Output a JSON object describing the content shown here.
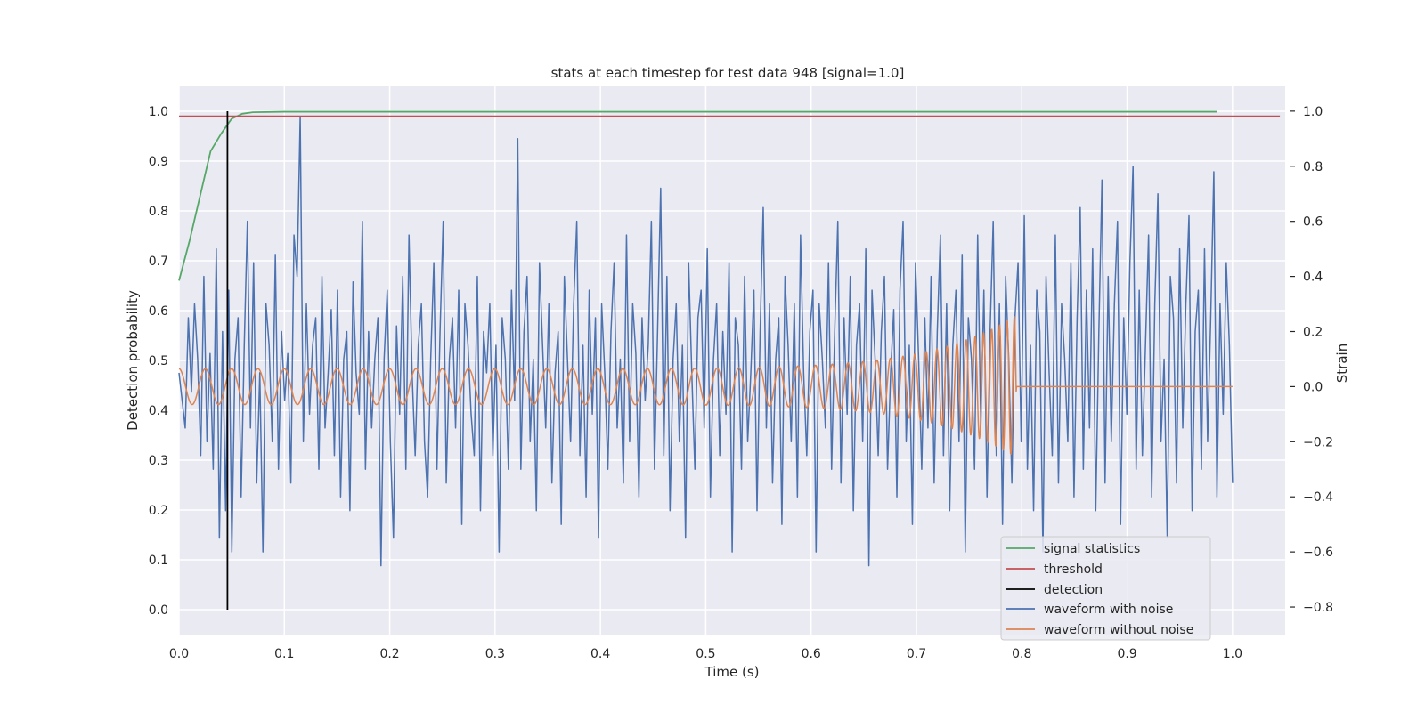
{
  "chart_data": {
    "type": "line",
    "title": "stats at each timestep for test data 948 [signal=1.0]",
    "xlabel": "Time (s)",
    "ylabel_left": "Detection probability",
    "ylabel_right": "Strain",
    "xlim": [
      0.0,
      1.05
    ],
    "ylim_left": [
      -0.05,
      1.05
    ],
    "ylim_right": [
      -0.9,
      1.09
    ],
    "x_ticks": [
      0.0,
      0.1,
      0.2,
      0.3,
      0.4,
      0.5,
      0.6,
      0.7,
      0.8,
      0.9,
      1.0
    ],
    "x_tick_labels": [
      "0.0",
      "0.1",
      "0.2",
      "0.3",
      "0.4",
      "0.5",
      "0.6",
      "0.7",
      "0.8",
      "0.9",
      "1.0"
    ],
    "y_left_ticks": [
      0.0,
      0.1,
      0.2,
      0.3,
      0.4,
      0.5,
      0.6,
      0.7,
      0.8,
      0.9,
      1.0
    ],
    "y_left_tick_labels": [
      "0.0",
      "0.1",
      "0.2",
      "0.3",
      "0.4",
      "0.5",
      "0.6",
      "0.7",
      "0.8",
      "0.9",
      "1.0"
    ],
    "y_right_ticks": [
      -0.8,
      -0.6,
      -0.4,
      -0.2,
      0.0,
      0.2,
      0.4,
      0.6,
      0.8,
      1.0
    ],
    "y_right_tick_labels": [
      "−0.8",
      "−0.6",
      "−0.4",
      "−0.2",
      "0.0",
      "0.2",
      "0.4",
      "0.6",
      "0.8",
      "1.0"
    ],
    "grid": true,
    "legend_position": "bottom-right",
    "background_color": "#eaeaf2",
    "series": [
      {
        "name": "signal statistics",
        "axis": "left",
        "color": "#55a868",
        "x": [
          0.0,
          0.01,
          0.02,
          0.03,
          0.04,
          0.05,
          0.06,
          0.07,
          0.1,
          0.3,
          0.5,
          0.7,
          0.9,
          0.985
        ],
        "y": [
          0.66,
          0.74,
          0.83,
          0.92,
          0.955,
          0.985,
          0.995,
          0.998,
          0.999,
          0.999,
          0.999,
          0.999,
          0.999,
          0.999
        ]
      },
      {
        "name": "threshold",
        "axis": "left",
        "color": "#c44e52",
        "x": [
          0.0,
          1.045
        ],
        "y": [
          0.99,
          0.99
        ]
      },
      {
        "name": "detection",
        "axis": "left",
        "color": "#000000",
        "x": [
          0.046,
          0.046
        ],
        "y": [
          0.0,
          1.0
        ]
      },
      {
        "name": "waveform with noise",
        "axis": "right",
        "color": "#4c72b0",
        "x_start": 0.0,
        "x_end": 1.0,
        "y": [
          0.05,
          -0.05,
          -0.15,
          0.25,
          -0.02,
          0.3,
          0.1,
          -0.25,
          0.4,
          -0.2,
          0.12,
          -0.3,
          0.5,
          -0.55,
          0.2,
          -0.45,
          0.35,
          -0.6,
          0.1,
          0.25,
          -0.4,
          0.15,
          0.6,
          -0.15,
          0.45,
          -0.35,
          0.05,
          -0.6,
          0.3,
          0.15,
          -0.2,
          0.48,
          -0.3,
          0.2,
          -0.05,
          0.12,
          -0.35,
          0.55,
          0.4,
          0.98,
          -0.2,
          0.3,
          -0.1,
          0.15,
          0.25,
          -0.3,
          0.4,
          -0.15,
          0.05,
          0.28,
          -0.25,
          0.35,
          -0.4,
          0.1,
          0.2,
          -0.45,
          0.38,
          0.05,
          -0.1,
          0.6,
          -0.3,
          0.2,
          -0.15,
          0.1,
          0.25,
          -0.65,
          0.1,
          0.35,
          -0.2,
          -0.55,
          0.22,
          -0.1,
          0.4,
          -0.3,
          0.55,
          0.05,
          -0.25,
          0.15,
          0.3,
          -0.2,
          -0.4,
          0.1,
          0.45,
          -0.3,
          0.2,
          0.6,
          -0.35,
          0.1,
          0.25,
          -0.15,
          0.35,
          -0.5,
          0.3,
          0.15,
          -0.1,
          -0.25,
          0.4,
          -0.45,
          0.2,
          0.05,
          0.3,
          -0.25,
          0.15,
          -0.6,
          0.25,
          0.1,
          -0.3,
          0.35,
          -0.05,
          0.9,
          -0.3,
          0.2,
          0.4,
          -0.2,
          0.1,
          -0.45,
          0.45,
          0.15,
          -0.15,
          0.3,
          -0.35,
          0.05,
          0.2,
          -0.5,
          0.4,
          0.1,
          -0.2,
          0.3,
          0.6,
          -0.25,
          0.15,
          -0.4,
          0.35,
          -0.1,
          0.25,
          -0.55,
          0.3,
          0.05,
          -0.3,
          0.2,
          0.45,
          -0.15,
          0.1,
          -0.35,
          0.55,
          -0.2,
          0.3,
          0.12,
          -0.4,
          0.25,
          -0.05,
          0.15,
          0.6,
          -0.3,
          0.2,
          0.72,
          -0.25,
          0.4,
          -0.45,
          0.1,
          0.3,
          -0.2,
          0.15,
          -0.55,
          0.45,
          0.05,
          -0.3,
          0.25,
          0.35,
          -0.15,
          0.5,
          -0.4,
          0.1,
          0.3,
          -0.25,
          0.2,
          -0.1,
          0.45,
          -0.6,
          0.25,
          0.15,
          -0.3,
          0.4,
          -0.2,
          0.05,
          0.35,
          -0.45,
          0.2,
          0.65,
          -0.15,
          0.3,
          -0.35,
          0.1,
          0.25,
          -0.5,
          0.4,
          0.15,
          -0.2,
          0.3,
          -0.4,
          0.55,
          0.05,
          -0.25,
          0.2,
          0.35,
          -0.6,
          0.3,
          0.1,
          -0.15,
          0.45,
          -0.3,
          0.2,
          0.6,
          -0.35,
          0.25,
          -0.1,
          0.4,
          -0.45,
          0.15,
          0.3,
          -0.2,
          0.5,
          -0.65,
          0.35,
          0.1,
          -0.25,
          0.2,
          0.4,
          -0.3,
          0.05,
          0.28,
          -0.4,
          0.35,
          0.6,
          -0.2,
          0.15,
          -0.5,
          0.45,
          0.1,
          -0.3,
          0.25,
          -0.15,
          0.4,
          -0.35,
          0.2,
          0.55,
          -0.25,
          0.3,
          -0.45,
          0.15,
          0.35,
          -0.2,
          0.48,
          -0.6,
          0.25,
          0.1,
          -0.3,
          0.55,
          -0.15,
          0.35,
          -0.4,
          0.2,
          0.6,
          -0.25,
          0.3,
          -0.5,
          0.4,
          0.1,
          -0.35,
          0.25,
          0.45,
          -0.2,
          0.62,
          -0.3,
          0.15,
          -0.45,
          0.35,
          0.2,
          -0.6,
          0.4,
          0.05,
          -0.25,
          0.55,
          -0.35,
          0.3,
          0.1,
          -0.2,
          0.45,
          -0.4,
          0.25,
          0.65,
          -0.3,
          0.35,
          -0.15,
          0.5,
          -0.45,
          0.2,
          0.75,
          -0.35,
          0.4,
          -0.2,
          0.3,
          0.6,
          -0.5,
          0.25,
          -0.1,
          0.45,
          0.8,
          -0.3,
          0.35,
          -0.25,
          0.15,
          0.55,
          -0.4,
          0.3,
          0.7,
          -0.2,
          0.1,
          -0.55,
          0.4,
          0.25,
          -0.35,
          0.5,
          -0.15,
          0.3,
          0.62,
          -0.45,
          0.2,
          0.35,
          -0.3,
          0.5,
          -0.2,
          0.25,
          0.78,
          -0.4,
          0.3,
          -0.1,
          0.45,
          0.15,
          -0.35
        ]
      },
      {
        "name": "waveform without noise",
        "axis": "right",
        "color": "#dd8452",
        "x_start": 0.0,
        "x_end": 1.0,
        "merger_time": 0.795,
        "start_amplitude": 0.065,
        "peak_amplitude": 0.26,
        "start_frequency": 40,
        "end_frequency": 150,
        "post_merger_value": 0.0
      }
    ]
  }
}
